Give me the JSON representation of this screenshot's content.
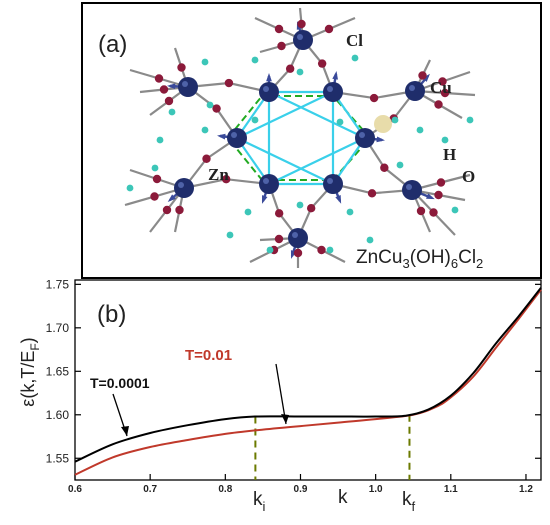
{
  "panel_a": {
    "label": "(a)",
    "atoms": {
      "cl": "Cl",
      "cu": "Cu",
      "h": "H",
      "o": "O",
      "zn": "Zn"
    },
    "formula": {
      "zn": "ZnCu",
      "sub3": "3",
      "oh": "(OH)",
      "sub6": "6",
      "cl": "Cl",
      "sub2": "2"
    },
    "colors": {
      "metal": "#1f2d6b",
      "oxygen": "#8b1a3a",
      "hydrogen": "#3cc6b8",
      "triangle": "#3ad0ea",
      "hexagon": "#22aa22",
      "arrow": "#3a4a9a",
      "bond": "#8a8a8a"
    }
  },
  "panel_b": {
    "label": "(b)",
    "ylabel": {
      "main": "ε(k,T/E",
      "sub": "F",
      "tail": ")"
    },
    "xlabel": "k",
    "marker_labels": {
      "ki_main": "k",
      "ki_sub": "i",
      "kf_main": "k",
      "kf_sub": "f"
    },
    "colors": {
      "curve_low": "#000000",
      "curve_high": "#c0392b",
      "marker": "#6b7a00"
    }
  },
  "chart_data": {
    "type": "line",
    "xlim": [
      0.6,
      1.22
    ],
    "ylim": [
      1.525,
      1.755
    ],
    "xticks": [
      0.6,
      0.7,
      0.8,
      0.9,
      1.0,
      1.1,
      1.2
    ],
    "xtick_labels": [
      "0.6",
      "0.7",
      "0.8",
      "0.9",
      "1.0",
      "1.1",
      "1.2"
    ],
    "yticks": [
      1.55,
      1.6,
      1.65,
      1.7,
      1.75
    ],
    "ytick_labels": [
      "1.55",
      "1.60",
      "1.65",
      "1.70",
      "1.75"
    ],
    "series": [
      {
        "name": "T=0.0001",
        "x": [
          0.6,
          0.65,
          0.7,
          0.75,
          0.8,
          0.84,
          0.9,
          0.95,
          1.0,
          1.04,
          1.07,
          1.1,
          1.13,
          1.16,
          1.19,
          1.22
        ],
        "y": [
          1.546,
          1.566,
          1.579,
          1.588,
          1.595,
          1.598,
          1.598,
          1.598,
          1.598,
          1.599,
          1.606,
          1.622,
          1.648,
          1.682,
          1.713,
          1.746
        ]
      },
      {
        "name": "T=0.01",
        "x": [
          0.6,
          0.65,
          0.7,
          0.75,
          0.8,
          0.85,
          0.9,
          0.95,
          1.0,
          1.05,
          1.08,
          1.1,
          1.13,
          1.16,
          1.19,
          1.22
        ],
        "y": [
          1.531,
          1.551,
          1.563,
          1.571,
          1.578,
          1.583,
          1.587,
          1.591,
          1.595,
          1.6,
          1.609,
          1.62,
          1.644,
          1.677,
          1.71,
          1.744
        ]
      }
    ],
    "markers": [
      {
        "name": "k_i",
        "x": 0.84,
        "y_top": 1.598
      },
      {
        "name": "k_f",
        "x": 1.045,
        "y_top": 1.6
      }
    ]
  }
}
